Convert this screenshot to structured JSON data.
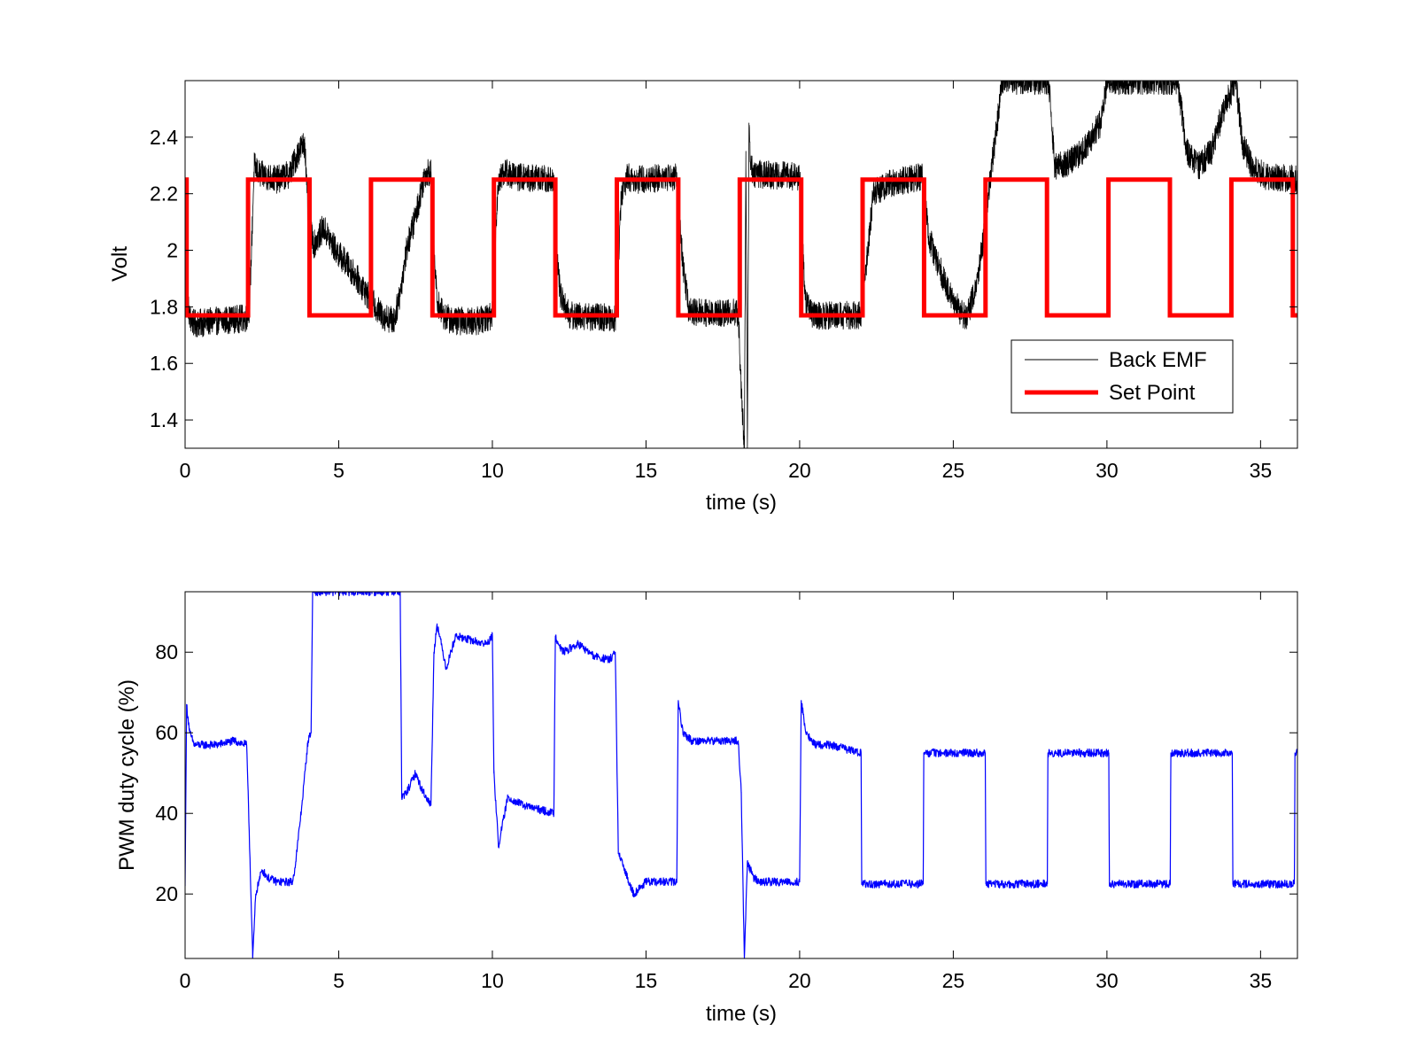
{
  "chart_data": [
    {
      "type": "line",
      "title": "",
      "xlabel": "time (s)",
      "ylabel": "Volt",
      "xlim": [
        0,
        36.2
      ],
      "ylim": [
        1.3,
        2.6
      ],
      "xticks": [
        0,
        5,
        10,
        15,
        20,
        25,
        30,
        35
      ],
      "yticks": [
        1.4,
        1.6,
        1.8,
        2,
        2.2,
        2.4
      ],
      "xtick_labels": [
        "0",
        "5",
        "10",
        "15",
        "20",
        "25",
        "30",
        "35"
      ],
      "ytick_labels": [
        "1.4",
        "1.6",
        "1.8",
        "2",
        "2.2",
        "2.4"
      ],
      "grid": false,
      "legend": {
        "position": "bottom-right"
      },
      "series": [
        {
          "name": "Back EMF",
          "color": "#000000",
          "style": "noisy",
          "noise_amplitude": 0.05,
          "x": [
            0,
            0.05,
            0.15,
            0.3,
            1.0,
            2.0,
            2.1,
            2.25,
            2.4,
            3.0,
            3.4,
            3.7,
            3.9,
            4.0,
            4.2,
            4.5,
            4.9,
            5.2,
            5.6,
            6.0,
            6.4,
            6.8,
            7.0,
            7.2,
            7.5,
            7.8,
            8.0,
            8.1,
            8.2,
            8.4,
            8.7,
            9.5,
            10.0,
            10.1,
            10.2,
            10.4,
            10.7,
            12.0,
            12.1,
            12.2,
            12.5,
            14.0,
            14.1,
            14.2,
            14.4,
            14.7,
            16.0,
            16.2,
            16.4,
            18.0,
            18.1,
            18.2,
            18.25,
            18.3,
            18.35,
            18.4,
            18.5,
            20.0,
            20.1,
            20.2,
            20.4,
            22.0,
            22.2,
            22.4,
            23.0,
            24.0,
            24.2,
            24.5,
            25.0,
            25.4,
            25.7,
            26.0,
            26.2,
            26.6,
            28.1,
            28.3,
            28.6,
            29.2,
            29.8,
            30.0,
            30.2,
            30.6,
            32.3,
            32.6,
            33.0,
            33.4,
            33.8,
            34.2,
            34.4,
            34.7,
            35.2,
            36.2
          ],
          "y": [
            2.3,
            1.85,
            1.76,
            1.74,
            1.75,
            1.76,
            1.8,
            2.3,
            2.27,
            2.25,
            2.27,
            2.35,
            2.38,
            2.1,
            2.02,
            2.08,
            2.0,
            1.96,
            1.9,
            1.83,
            1.77,
            1.75,
            1.85,
            2.0,
            2.12,
            2.27,
            2.28,
            2.0,
            1.82,
            1.77,
            1.75,
            1.75,
            1.77,
            2.05,
            2.25,
            2.28,
            2.26,
            2.25,
            2.0,
            1.85,
            1.77,
            1.76,
            1.95,
            2.2,
            2.26,
            2.25,
            2.26,
            1.95,
            1.78,
            1.78,
            1.5,
            1.3,
            2.35,
            1.3,
            2.45,
            2.3,
            2.27,
            2.26,
            2.0,
            1.82,
            1.77,
            1.77,
            1.98,
            2.2,
            2.24,
            2.26,
            2.05,
            1.95,
            1.82,
            1.76,
            1.85,
            2.05,
            2.25,
            2.6,
            2.6,
            2.3,
            2.3,
            2.35,
            2.45,
            2.6,
            2.6,
            2.6,
            2.6,
            2.35,
            2.3,
            2.35,
            2.5,
            2.6,
            2.38,
            2.3,
            2.26,
            2.25
          ]
        },
        {
          "name": "Set Point",
          "color": "#ff0000",
          "style": "step",
          "x": [
            0,
            0.05,
            2.05,
            4.05,
            6.05,
            8.05,
            10.05,
            12.05,
            14.05,
            16.05,
            18.05,
            20.05,
            22.05,
            24.05,
            26.05,
            28.05,
            30.05,
            32.05,
            34.05,
            36.05,
            36.2
          ],
          "y": [
            2.25,
            1.77,
            2.25,
            1.77,
            2.25,
            1.77,
            2.25,
            1.77,
            2.25,
            1.77,
            2.25,
            1.77,
            2.25,
            1.77,
            2.25,
            1.77,
            2.25,
            1.77,
            2.25,
            1.77,
            1.77
          ]
        }
      ]
    },
    {
      "type": "line",
      "title": "",
      "xlabel": "time (s)",
      "ylabel": "PWM duty cycle (%)",
      "xlim": [
        0,
        36.2
      ],
      "ylim": [
        4,
        95
      ],
      "xticks": [
        0,
        5,
        10,
        15,
        20,
        25,
        30,
        35
      ],
      "yticks": [
        20,
        40,
        60,
        80
      ],
      "xtick_labels": [
        "0",
        "5",
        "10",
        "15",
        "20",
        "25",
        "30",
        "35"
      ],
      "ytick_labels": [
        "20",
        "40",
        "60",
        "80"
      ],
      "grid": false,
      "series": [
        {
          "color": "#0000ff",
          "style": "noisy",
          "noise_amplitude": 1.0,
          "x": [
            0,
            0.05,
            0.15,
            0.3,
            0.6,
            1.0,
            1.6,
            2.0,
            2.05,
            2.2,
            2.3,
            2.5,
            2.7,
            3.0,
            3.5,
            3.6,
            3.8,
            4.0,
            4.1,
            4.15,
            7.0,
            7.05,
            7.2,
            7.5,
            7.7,
            8.0,
            8.1,
            8.2,
            8.5,
            8.8,
            9.3,
            9.8,
            10.0,
            10.05,
            10.2,
            10.5,
            11.0,
            11.5,
            12.0,
            12.05,
            12.3,
            12.8,
            13.3,
            13.8,
            14.0,
            14.1,
            14.3,
            14.6,
            15.0,
            16.0,
            16.05,
            16.2,
            16.5,
            17.0,
            18.0,
            18.1,
            18.2,
            18.3,
            18.5,
            18.7,
            19.0,
            20.0,
            20.05,
            20.2,
            20.5,
            21.0,
            22.0,
            22.02,
            24.02,
            24.04,
            26.04,
            26.06,
            28.06,
            28.08,
            30.06,
            30.08,
            32.06,
            32.08,
            34.08,
            34.1,
            36.1,
            36.12,
            36.2
          ],
          "y": [
            22,
            67,
            60,
            57,
            57,
            57,
            58,
            57,
            46,
            4,
            20,
            26,
            24,
            23,
            23,
            28,
            42,
            58,
            60,
            95,
            95,
            44,
            45,
            50,
            46,
            42,
            80,
            87,
            76,
            84,
            83,
            82,
            84,
            50,
            32,
            44,
            42,
            41,
            40,
            84,
            80,
            82,
            79,
            78,
            80,
            30,
            26,
            20,
            23,
            23,
            68,
            60,
            58,
            58,
            58,
            45,
            4,
            28,
            24,
            23,
            23,
            23,
            68,
            60,
            57,
            57,
            55,
            22.5,
            22.5,
            55,
            55,
            22.5,
            22.5,
            55,
            55,
            22.5,
            22.5,
            55,
            55,
            22.5,
            22.5,
            55,
            55
          ]
        }
      ]
    }
  ]
}
